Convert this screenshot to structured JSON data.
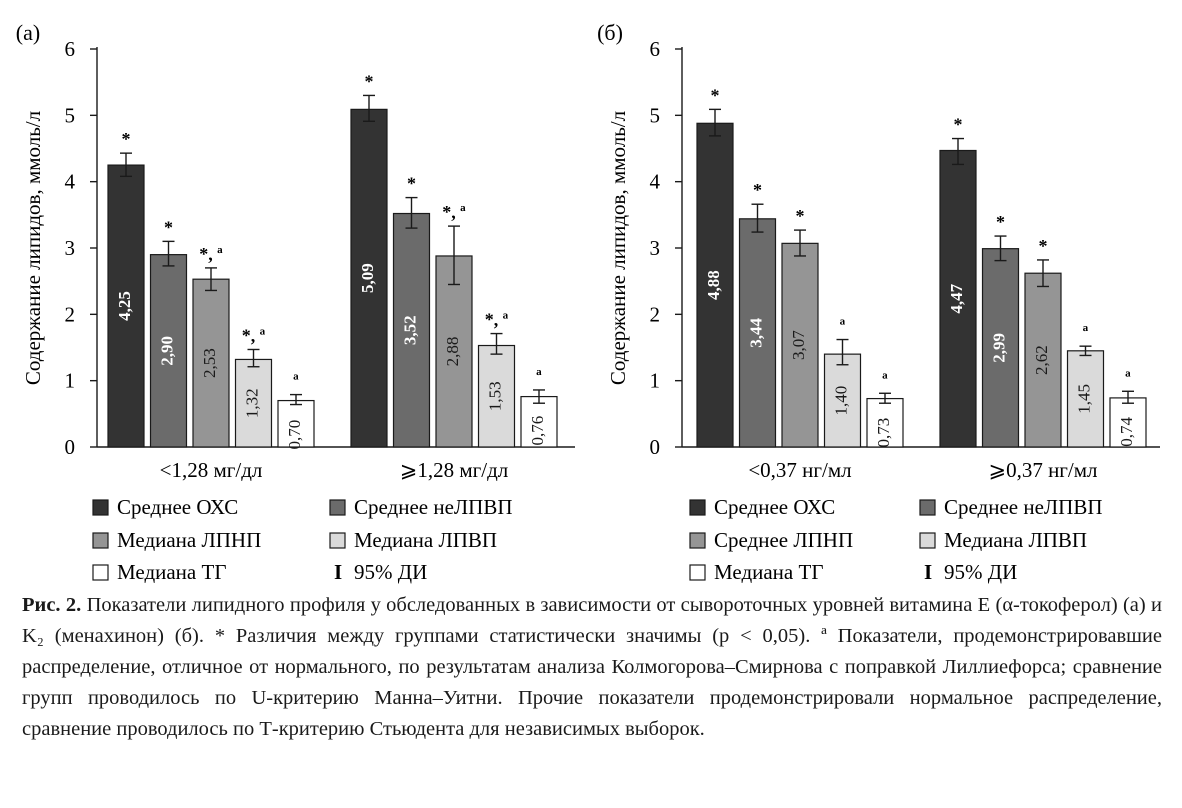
{
  "chart_data": [
    {
      "type": "bar",
      "panel_label": "(a)",
      "ylabel": "Содержание липидов, ммоль/л",
      "ylim": [
        0,
        6
      ],
      "yticks": [
        "0",
        "1",
        "2",
        "3",
        "4",
        "5",
        "6"
      ],
      "categories": [
        "<1,28 мг/дл",
        "⩾1,28 мг/дл"
      ],
      "series": [
        {
          "values": [
            4.25,
            5.09
          ],
          "labels": [
            "4,25",
            "5,09"
          ],
          "ci": [
            [
              4.08,
              4.43
            ],
            [
              4.91,
              5.3
            ]
          ],
          "marks": [
            "*",
            "*"
          ]
        },
        {
          "values": [
            2.9,
            3.52
          ],
          "labels": [
            "2,90",
            "3,52"
          ],
          "ci": [
            [
              2.73,
              3.1
            ],
            [
              3.3,
              3.76
            ]
          ],
          "marks": [
            "*",
            "*"
          ]
        },
        {
          "values": [
            2.53,
            2.88
          ],
          "labels": [
            "2,53",
            "2,88"
          ],
          "ci": [
            [
              2.36,
              2.7
            ],
            [
              2.45,
              3.33
            ]
          ],
          "marks": [
            "*, ª",
            "*, ª"
          ]
        },
        {
          "values": [
            1.32,
            1.53
          ],
          "labels": [
            "1,32",
            "1,53"
          ],
          "ci": [
            [
              1.21,
              1.47
            ],
            [
              1.4,
              1.71
            ]
          ],
          "marks": [
            "*, ª",
            "*, ª"
          ]
        },
        {
          "values": [
            0.7,
            0.76
          ],
          "labels": [
            "0,70",
            "0,76"
          ],
          "ci": [
            [
              0.64,
              0.79
            ],
            [
              0.66,
              0.86
            ]
          ],
          "marks": [
            "ª",
            "ª"
          ]
        }
      ],
      "legend": [
        "Среднее ОХС",
        "Среднее неЛПВП",
        "Медиана ЛПНП",
        "Медиана ЛПВП",
        "Медиана ТГ",
        "95% ДИ"
      ],
      "ci_symbol": "I",
      "grid": false
    },
    {
      "type": "bar",
      "panel_label": "(б)",
      "ylabel": "Содержание липидов, ммоль/л",
      "ylim": [
        0,
        6
      ],
      "yticks": [
        "0",
        "1",
        "2",
        "3",
        "4",
        "5",
        "6"
      ],
      "categories": [
        "<0,37 нг/мл",
        "⩾0,37 нг/мл"
      ],
      "series": [
        {
          "values": [
            4.88,
            4.47
          ],
          "labels": [
            "4,88",
            "4,47"
          ],
          "ci": [
            [
              4.69,
              5.09
            ],
            [
              4.26,
              4.65
            ]
          ],
          "marks": [
            "*",
            "*"
          ]
        },
        {
          "values": [
            3.44,
            2.99
          ],
          "labels": [
            "3,44",
            "2,99"
          ],
          "ci": [
            [
              3.24,
              3.66
            ],
            [
              2.81,
              3.18
            ]
          ],
          "marks": [
            "*",
            "*"
          ]
        },
        {
          "values": [
            3.07,
            2.62
          ],
          "labels": [
            "3,07",
            "2,62"
          ],
          "ci": [
            [
              2.88,
              3.27
            ],
            [
              2.42,
              2.82
            ]
          ],
          "marks": [
            "*",
            "*"
          ]
        },
        {
          "values": [
            1.4,
            1.45
          ],
          "labels": [
            "1,40",
            "1,45"
          ],
          "ci": [
            [
              1.24,
              1.62
            ],
            [
              1.38,
              1.52
            ]
          ],
          "marks": [
            "ª",
            "ª"
          ]
        },
        {
          "values": [
            0.73,
            0.74
          ],
          "labels": [
            "0,73",
            "0,74"
          ],
          "ci": [
            [
              0.66,
              0.81
            ],
            [
              0.66,
              0.84
            ]
          ],
          "marks": [
            "ª",
            "ª"
          ]
        }
      ],
      "legend": [
        "Среднее ОХС",
        "Среднее неЛПВП",
        "Среднее ЛПНП",
        "Медиана ЛПВП",
        "Медиана ТГ",
        "95% ДИ"
      ],
      "ci_symbol": "I",
      "grid": false
    }
  ],
  "colors": {
    "series": [
      "#333333",
      "#6b6b6b",
      "#959595",
      "#dadada",
      "#ffffff"
    ],
    "bar_label_on_dark": "#ffffff",
    "bar_label_on_light": "#1a1a1a"
  },
  "caption": {
    "lead": "Рис. 2.",
    "text": "Показатели липидного профиля у обследованных в зависимости от сывороточных уровней витамина Е (α-токоферол) (а) и K₂ (менахинон) (б). * Различия между группами статистически значимы (р < 0,05). ª Показатели, продемонстрировавшие распределение, отличное от нормального, по результатам анализа Колмогорова–Смирнова с поправкой Лиллиефорса; сравнение групп проводилось по U-критерию Манна–Уитни. Прочие показатели продемонстрировали нормальное распределение, сравнение проводилось по Т-критерию Стьюдента для независимых выборок."
  }
}
